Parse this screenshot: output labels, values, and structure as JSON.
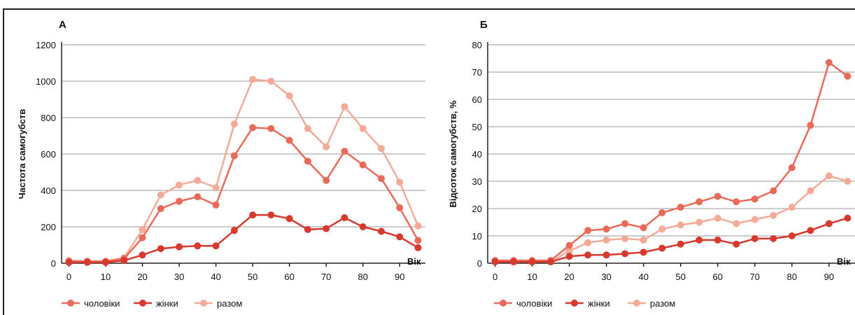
{
  "chart_data": [
    {
      "panel_label": "А",
      "type": "line",
      "ylabel": "Частота самогубств",
      "xlabel": "Вік",
      "x_ticks": [
        0,
        10,
        20,
        30,
        40,
        50,
        60,
        70,
        80,
        90
      ],
      "y_ticks": [
        0,
        200,
        400,
        600,
        800,
        1000,
        1200
      ],
      "xlim": [
        -2,
        97
      ],
      "ylim": [
        0,
        1200
      ],
      "grid": "horizontal",
      "x": [
        0,
        5,
        10,
        15,
        20,
        25,
        30,
        35,
        40,
        45,
        50,
        55,
        60,
        65,
        70,
        75,
        80,
        85,
        90,
        95
      ],
      "series": [
        {
          "name": "чоловіки",
          "color": "#ea6a5a",
          "values": [
            10,
            8,
            8,
            25,
            140,
            300,
            340,
            365,
            320,
            590,
            745,
            740,
            675,
            560,
            455,
            615,
            540,
            465,
            305,
            125
          ]
        },
        {
          "name": "жінки",
          "color": "#d7392f",
          "values": [
            5,
            5,
            5,
            15,
            45,
            80,
            90,
            95,
            95,
            180,
            265,
            265,
            245,
            185,
            190,
            250,
            200,
            175,
            145,
            85
          ]
        },
        {
          "name": "разом",
          "color": "#f3ab98",
          "values": [
            15,
            12,
            12,
            30,
            185,
            375,
            430,
            455,
            415,
            765,
            1010,
            1000,
            920,
            740,
            640,
            860,
            740,
            630,
            445,
            205
          ]
        }
      ]
    },
    {
      "panel_label": "Б",
      "type": "line",
      "ylabel": "Відсоток самогубств, %",
      "xlabel": "Вік",
      "x_ticks": [
        0,
        10,
        20,
        30,
        40,
        50,
        60,
        70,
        80,
        90
      ],
      "y_ticks": [
        0,
        10,
        20,
        30,
        40,
        50,
        60,
        70,
        80
      ],
      "xlim": [
        -2,
        97
      ],
      "ylim": [
        0,
        80
      ],
      "grid": "horizontal",
      "x": [
        0,
        5,
        10,
        15,
        20,
        25,
        30,
        35,
        40,
        45,
        50,
        55,
        60,
        65,
        70,
        75,
        80,
        85,
        90,
        95
      ],
      "series": [
        {
          "name": "чоловіки",
          "color": "#ea6a5a",
          "values": [
            1,
            1,
            1,
            1,
            6.5,
            12,
            12.5,
            14.5,
            13,
            18.5,
            20.5,
            22.5,
            24.5,
            22.5,
            23.5,
            26.5,
            35,
            50.5,
            73.5,
            68.5
          ]
        },
        {
          "name": "жінки",
          "color": "#d7392f",
          "values": [
            0.5,
            0.5,
            0.5,
            0.5,
            2.5,
            3,
            3,
            3.5,
            4,
            5.5,
            7,
            8.5,
            8.5,
            7,
            9,
            9,
            10,
            12,
            14.5,
            16.5
          ]
        },
        {
          "name": "разом",
          "color": "#f3ab98",
          "values": [
            0.5,
            0.5,
            0.5,
            0.5,
            4.5,
            7.5,
            8.5,
            9,
            8.5,
            12.5,
            14,
            15,
            16.5,
            14.5,
            16,
            17.5,
            20.5,
            26.5,
            32,
            30
          ]
        }
      ]
    }
  ],
  "legend": [
    {
      "label": "чоловіки",
      "color": "#ea6a5a"
    },
    {
      "label": "жінки",
      "color": "#d7392f"
    },
    {
      "label": "разом",
      "color": "#f3ab98"
    }
  ]
}
